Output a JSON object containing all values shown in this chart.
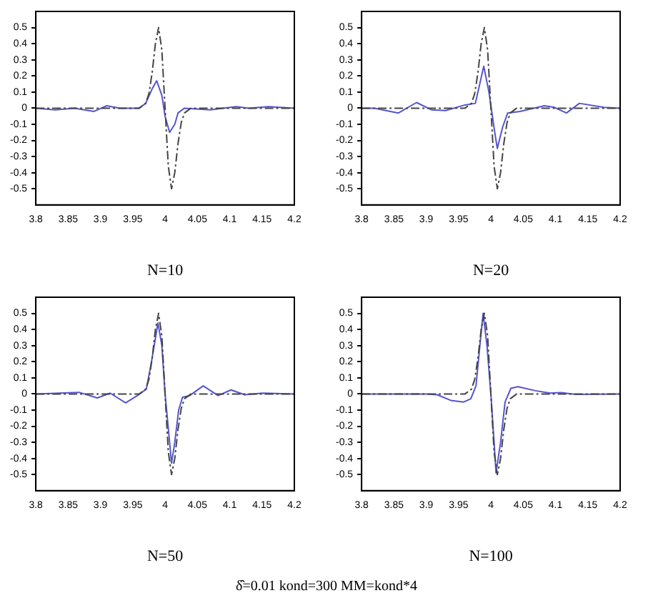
{
  "chart_data": [
    {
      "type": "line",
      "xlabel": "N=10",
      "xlim": [
        3.8,
        4.2
      ],
      "xticks": [
        3.8,
        3.85,
        3.9,
        3.95,
        4,
        4.05,
        4.1,
        4.15,
        4.2
      ],
      "ylim": [
        -0.6,
        0.6
      ],
      "yticks": [
        -0.5,
        -0.4,
        -0.3,
        -0.2,
        -0.1,
        0,
        0.1,
        0.2,
        0.3,
        0.4,
        0.5
      ],
      "grid": false,
      "legend": false,
      "marker": "none",
      "series": [
        {
          "color": "#444444",
          "line_style": "dashed",
          "x": [
            3.8,
            3.96,
            3.97,
            3.975,
            3.98,
            3.985,
            3.99,
            3.995,
            4.0,
            4.005,
            4.01,
            4.015,
            4.02,
            4.025,
            4.03,
            4.04,
            4.2
          ],
          "values": [
            0,
            0,
            0.03,
            0.09,
            0.22,
            0.4,
            0.5,
            0.36,
            0,
            -0.36,
            -0.5,
            -0.4,
            -0.22,
            -0.09,
            -0.03,
            0,
            0
          ]
        },
        {
          "color": "#5555cc",
          "line_style": "solid",
          "x": [
            3.8,
            3.83,
            3.86,
            3.89,
            3.91,
            3.93,
            3.96,
            3.97,
            3.98,
            3.987,
            3.995,
            4.0,
            4.007,
            4.015,
            4.02,
            4.03,
            4.07,
            4.09,
            4.11,
            4.13,
            4.16,
            4.2
          ],
          "values": [
            0,
            -0.01,
            0,
            -0.02,
            0.015,
            0,
            0,
            0.03,
            0.12,
            0.17,
            0.08,
            -0.05,
            -0.15,
            -0.1,
            -0.03,
            0,
            -0.01,
            0,
            0.01,
            0,
            0.01,
            0
          ]
        }
      ]
    },
    {
      "type": "line",
      "xlabel": "N=20",
      "xlim": [
        3.8,
        4.2
      ],
      "xticks": [
        3.8,
        3.85,
        3.9,
        3.95,
        4,
        4.05,
        4.1,
        4.15,
        4.2
      ],
      "ylim": [
        -0.6,
        0.6
      ],
      "yticks": [
        -0.5,
        -0.4,
        -0.3,
        -0.2,
        -0.1,
        0,
        0.1,
        0.2,
        0.3,
        0.4,
        0.5
      ],
      "grid": false,
      "legend": false,
      "marker": "none",
      "series": [
        {
          "color": "#444444",
          "line_style": "dashed",
          "x": [
            3.8,
            3.96,
            3.97,
            3.975,
            3.98,
            3.985,
            3.99,
            3.995,
            4.0,
            4.005,
            4.01,
            4.015,
            4.02,
            4.025,
            4.03,
            4.04,
            4.2
          ],
          "values": [
            0,
            0,
            0.03,
            0.09,
            0.22,
            0.4,
            0.5,
            0.36,
            0,
            -0.36,
            -0.5,
            -0.4,
            -0.22,
            -0.09,
            -0.03,
            0,
            0
          ]
        },
        {
          "color": "#5555cc",
          "line_style": "solid",
          "x": [
            3.8,
            3.82,
            3.857,
            3.885,
            3.908,
            3.93,
            3.96,
            3.976,
            3.989,
            3.997,
            4.006,
            4.01,
            4.018,
            4.026,
            4.045,
            4.083,
            4.098,
            4.117,
            4.137,
            4.175,
            4.2
          ],
          "values": [
            0,
            0,
            -0.03,
            0.035,
            -0.01,
            -0.015,
            0.02,
            0.03,
            0.26,
            0.1,
            -0.15,
            -0.25,
            -0.12,
            -0.03,
            -0.02,
            0.015,
            0.005,
            -0.03,
            0.03,
            0.005,
            0
          ]
        }
      ]
    },
    {
      "type": "line",
      "xlabel": "N=50",
      "xlim": [
        3.8,
        4.2
      ],
      "xticks": [
        3.8,
        3.85,
        3.9,
        3.95,
        4,
        4.05,
        4.1,
        4.15,
        4.2
      ],
      "ylim": [
        -0.6,
        0.6
      ],
      "yticks": [
        -0.5,
        -0.4,
        -0.3,
        -0.2,
        -0.1,
        0,
        0.1,
        0.2,
        0.3,
        0.4,
        0.5
      ],
      "grid": false,
      "legend": false,
      "marker": "none",
      "series": [
        {
          "color": "#444444",
          "line_style": "dashed",
          "x": [
            3.8,
            3.96,
            3.97,
            3.975,
            3.98,
            3.985,
            3.99,
            3.995,
            4.0,
            4.005,
            4.01,
            4.015,
            4.02,
            4.025,
            4.03,
            4.04,
            4.2
          ],
          "values": [
            0,
            0,
            0.03,
            0.09,
            0.22,
            0.4,
            0.5,
            0.36,
            0,
            -0.36,
            -0.5,
            -0.4,
            -0.22,
            -0.09,
            -0.03,
            0,
            0
          ]
        },
        {
          "color": "#5555cc",
          "line_style": "solid",
          "x": [
            3.8,
            3.867,
            3.895,
            3.915,
            3.939,
            3.959,
            3.971,
            3.979,
            3.989,
            3.995,
            4.0,
            4.007,
            4.01,
            4.015,
            4.021,
            4.027,
            4.038,
            4.059,
            4.082,
            4.102,
            4.123,
            4.151,
            4.2
          ],
          "values": [
            0,
            0.01,
            -0.025,
            0.005,
            -0.055,
            -0.005,
            0.03,
            0.2,
            0.44,
            0.3,
            0,
            -0.3,
            -0.43,
            -0.3,
            -0.1,
            -0.02,
            -0.01,
            0.05,
            -0.01,
            0.025,
            -0.005,
            0.005,
            0
          ]
        }
      ]
    },
    {
      "type": "line",
      "xlabel": "N=100",
      "xlim": [
        3.8,
        4.2
      ],
      "xticks": [
        3.8,
        3.85,
        3.9,
        3.95,
        4,
        4.05,
        4.1,
        4.15,
        4.2
      ],
      "ylim": [
        -0.6,
        0.6
      ],
      "yticks": [
        -0.5,
        -0.4,
        -0.3,
        -0.2,
        -0.1,
        0,
        0.1,
        0.2,
        0.3,
        0.4,
        0.5
      ],
      "grid": false,
      "legend": false,
      "marker": "none",
      "annotations": [
        "δ̂=0.01 kond=300 MM=kond*4"
      ],
      "series": [
        {
          "color": "#444444",
          "line_style": "dashed",
          "x": [
            3.8,
            3.96,
            3.97,
            3.975,
            3.98,
            3.985,
            3.99,
            3.995,
            4.0,
            4.005,
            4.01,
            4.015,
            4.02,
            4.025,
            4.03,
            4.04,
            4.2
          ],
          "values": [
            0,
            0,
            0.03,
            0.09,
            0.22,
            0.4,
            0.5,
            0.36,
            0,
            -0.36,
            -0.5,
            -0.4,
            -0.22,
            -0.09,
            -0.03,
            0,
            0
          ]
        },
        {
          "color": "#5555cc",
          "line_style": "solid",
          "x": [
            3.8,
            3.9,
            3.917,
            3.938,
            3.958,
            3.969,
            3.977,
            3.983,
            3.988,
            3.994,
            4.0,
            4.005,
            4.008,
            4.015,
            4.022,
            4.031,
            4.042,
            4.069,
            4.092,
            4.108,
            4.131,
            4.2
          ],
          "values": [
            0,
            0,
            -0.005,
            -0.04,
            -0.05,
            -0.03,
            0.05,
            0.3,
            0.5,
            0.3,
            0,
            -0.3,
            -0.49,
            -0.3,
            -0.05,
            0.035,
            0.045,
            0.02,
            0.005,
            0.008,
            -0.003,
            0
          ]
        }
      ]
    }
  ]
}
